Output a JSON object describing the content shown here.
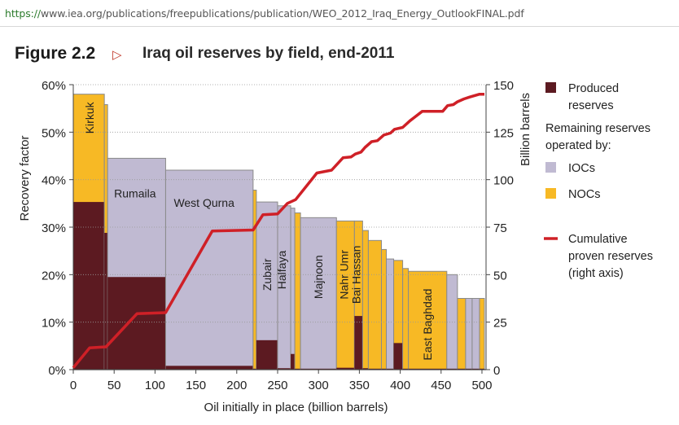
{
  "browser": {
    "url_proto": "https://",
    "url_rest": "www.iea.org/publications/freepublications/publication/WEO_2012_Iraq_Energy_OutlookFINAL.pdf"
  },
  "figure": {
    "label": "Figure 2.2",
    "title": "Iraq oil reserves by field, end-2011"
  },
  "colors": {
    "produced": "#5c1a21",
    "ioc": "#c0bad2",
    "noc": "#f7b925",
    "line": "#cf2027",
    "edge": "#8a8a8a"
  },
  "chart_data": {
    "type": "bar",
    "xlabel": "Oil initially in place (billion barrels)",
    "ylabel": "Recovery factor",
    "y2label": "Billion barrels",
    "xlim": [
      0,
      505
    ],
    "ylim": [
      0,
      60
    ],
    "y2lim": [
      0,
      150
    ],
    "xticks": [
      "0",
      "50",
      "100",
      "150",
      "200",
      "250",
      "300",
      "350",
      "400",
      "450",
      "500"
    ],
    "yticks": [
      "0%",
      "10%",
      "20%",
      "30%",
      "40%",
      "50%",
      "60%"
    ],
    "y2ticks": [
      "0",
      "25",
      "50",
      "75",
      "100",
      "125",
      "150"
    ],
    "legend": {
      "produced": "Produced reserves",
      "remaining_header": "Remaining reserves operated by:",
      "ioc": "IOCs",
      "noc": "NOCs",
      "line": "Cumulative proven reserves (right axis)"
    },
    "fields": [
      {
        "name": "Kirkuk",
        "x0": 0,
        "x1": 38,
        "rf": 58,
        "produced": 35.3,
        "op": "noc"
      },
      {
        "name": "",
        "x0": 38,
        "x1": 42,
        "rf": 55.8,
        "produced": 28.8,
        "op": "noc"
      },
      {
        "name": "Rumaila",
        "x0": 42,
        "x1": 113,
        "rf": 44.5,
        "produced": 19.5,
        "op": "ioc"
      },
      {
        "name": "West Qurna",
        "x0": 113,
        "x1": 220,
        "rf": 42,
        "produced": 0.8,
        "op": "ioc"
      },
      {
        "name": "",
        "x0": 220,
        "x1": 224,
        "rf": 37.8,
        "produced": 0.2,
        "op": "noc"
      },
      {
        "name": "Zubair",
        "x0": 224,
        "x1": 250,
        "rf": 35.3,
        "produced": 6.2,
        "op": "ioc"
      },
      {
        "name": "Halfaya",
        "x0": 250,
        "x1": 266,
        "rf": 34.5,
        "produced": 0.3,
        "op": "ioc"
      },
      {
        "name": "",
        "x0": 266,
        "x1": 271,
        "rf": 34,
        "produced": 3.3,
        "op": "ioc"
      },
      {
        "name": "",
        "x0": 271,
        "x1": 278,
        "rf": 33,
        "produced": 0.2,
        "op": "noc"
      },
      {
        "name": "Majnoon",
        "x0": 278,
        "x1": 322,
        "rf": 32,
        "produced": 0.2,
        "op": "ioc"
      },
      {
        "name": "Nahr Umr",
        "x0": 322,
        "x1": 344,
        "rf": 31.3,
        "produced": 0.4,
        "op": "noc"
      },
      {
        "name": "Bai Hassan",
        "x0": 344,
        "x1": 354,
        "rf": 31.3,
        "produced": 11.3,
        "op": "noc"
      },
      {
        "name": "",
        "x0": 354,
        "x1": 361,
        "rf": 29.3,
        "produced": 0.3,
        "op": "noc"
      },
      {
        "name": "",
        "x0": 361,
        "x1": 377,
        "rf": 27.2,
        "produced": 0.2,
        "op": "noc"
      },
      {
        "name": "",
        "x0": 377,
        "x1": 383,
        "rf": 25.3,
        "produced": 0.2,
        "op": "noc"
      },
      {
        "name": "",
        "x0": 383,
        "x1": 392,
        "rf": 23.3,
        "produced": 0.2,
        "op": "ioc"
      },
      {
        "name": "",
        "x0": 392,
        "x1": 403,
        "rf": 23,
        "produced": 5.6,
        "op": "noc"
      },
      {
        "name": "",
        "x0": 403,
        "x1": 410,
        "rf": 21.3,
        "produced": 0.2,
        "op": "noc"
      },
      {
        "name": "East Baghdad",
        "x0": 410,
        "x1": 457,
        "rf": 20.7,
        "produced": 0.2,
        "op": "noc"
      },
      {
        "name": "",
        "x0": 457,
        "x1": 470,
        "rf": 20,
        "produced": 0.2,
        "op": "ioc"
      },
      {
        "name": "",
        "x0": 470,
        "x1": 480,
        "rf": 15,
        "produced": 0.2,
        "op": "noc"
      },
      {
        "name": "",
        "x0": 480,
        "x1": 488,
        "rf": 15,
        "produced": 0.2,
        "op": "ioc"
      },
      {
        "name": "",
        "x0": 488,
        "x1": 497,
        "rf": 15,
        "produced": 0.2,
        "op": "ioc"
      },
      {
        "name": "",
        "x0": 497,
        "x1": 503,
        "rf": 15,
        "produced": 0.2,
        "op": "noc"
      }
    ],
    "cumulative": [
      [
        0,
        1
      ],
      [
        20,
        11.5
      ],
      [
        40,
        12
      ],
      [
        78,
        29.5
      ],
      [
        113,
        30
      ],
      [
        170,
        73
      ],
      [
        220,
        73.5
      ],
      [
        232,
        81.5
      ],
      [
        250,
        82
      ],
      [
        262,
        87.5
      ],
      [
        272,
        89.5
      ],
      [
        298,
        103.5
      ],
      [
        316,
        105
      ],
      [
        330,
        111.5
      ],
      [
        340,
        112
      ],
      [
        345,
        113.5
      ],
      [
        352,
        114.5
      ],
      [
        357,
        117
      ],
      [
        365,
        120
      ],
      [
        372,
        120.5
      ],
      [
        380,
        123.5
      ],
      [
        388,
        124.5
      ],
      [
        393,
        126.5
      ],
      [
        403,
        127.5
      ],
      [
        412,
        131
      ],
      [
        427,
        136
      ],
      [
        452,
        136
      ],
      [
        458,
        139
      ],
      [
        465,
        139.5
      ],
      [
        470,
        141
      ],
      [
        478,
        142.5
      ],
      [
        485,
        143.5
      ],
      [
        497,
        145
      ],
      [
        503,
        145
      ]
    ]
  }
}
